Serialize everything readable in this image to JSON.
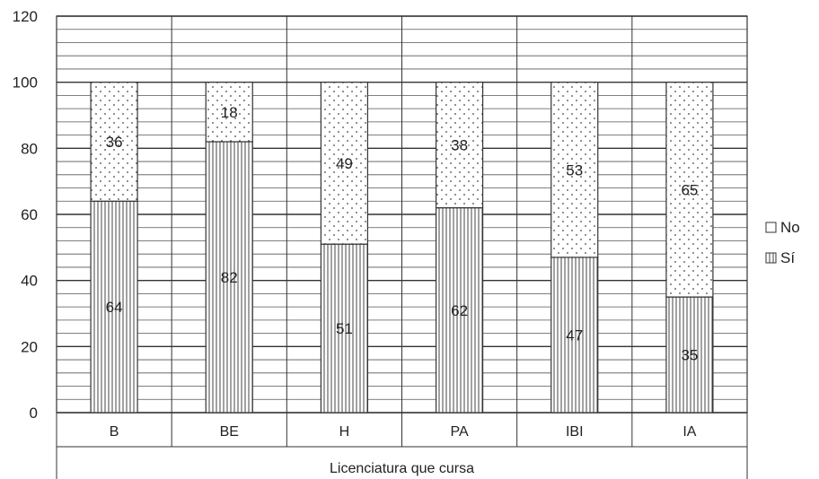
{
  "chart_data": {
    "type": "bar",
    "stacked": true,
    "categories": [
      "B",
      "BE",
      "H",
      "PA",
      "IBI",
      "IA"
    ],
    "series": [
      {
        "name": "Sí",
        "values": [
          64,
          82,
          51,
          62,
          47,
          35
        ],
        "pattern": "vertical-lines"
      },
      {
        "name": "No",
        "values": [
          36,
          18,
          49,
          38,
          53,
          65
        ],
        "pattern": "dots"
      }
    ],
    "title": "",
    "xlabel": "Licenciatura que cursa",
    "ylabel": "",
    "ylim": [
      0,
      120
    ],
    "yticks": [
      0,
      20,
      40,
      60,
      80,
      100,
      120
    ],
    "grid": true,
    "legend": {
      "position": "right",
      "order": [
        "No",
        "Sí"
      ]
    }
  }
}
